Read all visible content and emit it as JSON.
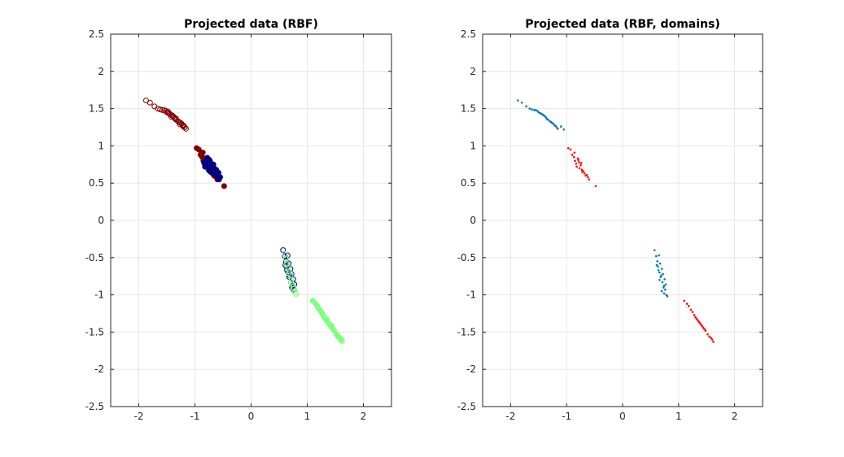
{
  "chart_data": [
    {
      "type": "scatter",
      "title": "Projected data (RBF)",
      "xlabel": "",
      "ylabel": "",
      "xlim": [
        -2.5,
        2.5
      ],
      "ylim": [
        -2.5,
        2.5
      ],
      "xticks": [
        "-2",
        "-1",
        "0",
        "1",
        "2"
      ],
      "xtick_values": [
        -2,
        -1,
        0,
        1,
        2
      ],
      "yticks": [
        "2.5",
        "2",
        "1.5",
        "1",
        "0.5",
        "0",
        "-0.5",
        "-1",
        "-1.5",
        "-2",
        "-2.5"
      ],
      "ytick_values": [
        2.5,
        2,
        1.5,
        1,
        0.5,
        0,
        -0.5,
        -1,
        -1.5,
        -2,
        -2.5
      ],
      "grid": true,
      "series": [
        {
          "color": "#800000",
          "marker": "open-circle",
          "x": [
            -1.87,
            -1.8,
            -1.72,
            -1.66,
            -1.62,
            -1.58,
            -1.55,
            -1.52,
            -1.5,
            -1.47,
            -1.45,
            -1.43,
            -1.41,
            -1.39,
            -1.37,
            -1.35,
            -1.33,
            -1.3,
            -1.28,
            -1.26,
            -1.24,
            -1.22,
            -1.2,
            -1.18,
            -1.16,
            -1.48,
            -1.42,
            -1.34,
            -1.27,
            -1.21
          ],
          "y": [
            1.61,
            1.58,
            1.53,
            1.5,
            1.49,
            1.48,
            1.48,
            1.47,
            1.45,
            1.44,
            1.43,
            1.42,
            1.41,
            1.4,
            1.38,
            1.36,
            1.35,
            1.33,
            1.32,
            1.31,
            1.3,
            1.28,
            1.27,
            1.25,
            1.23,
            1.46,
            1.39,
            1.37,
            1.29,
            1.26
          ]
        },
        {
          "color": "#800000",
          "marker": "filled-circle",
          "x": [
            -0.97,
            -0.93,
            -0.9,
            -0.87,
            -0.85,
            -0.83,
            -0.82,
            -0.8,
            -0.78,
            -0.77,
            -0.75,
            -0.73,
            -0.72,
            -0.7,
            -0.68,
            -0.66,
            -0.64,
            -0.62,
            -0.6,
            -0.48,
            -0.86,
            -0.79,
            -0.74
          ],
          "y": [
            0.97,
            0.95,
            0.88,
            0.85,
            0.8,
            0.76,
            0.72,
            0.83,
            0.78,
            0.7,
            0.74,
            0.68,
            0.65,
            0.66,
            0.63,
            0.6,
            0.61,
            0.58,
            0.55,
            0.46,
            0.91,
            0.81,
            0.77
          ]
        },
        {
          "color": "#000080",
          "marker": "filled-circle",
          "x": [
            -0.84,
            -0.8,
            -0.78,
            -0.76,
            -0.75,
            -0.73,
            -0.71,
            -0.7,
            -0.68,
            -0.67,
            -0.65,
            -0.64,
            -0.62,
            -0.6,
            -0.58,
            -0.57,
            -0.55,
            -0.74,
            -0.69,
            -0.63,
            -0.59,
            -0.82,
            -0.66
          ],
          "y": [
            0.78,
            0.76,
            0.84,
            0.73,
            0.67,
            0.79,
            0.71,
            0.64,
            0.69,
            0.75,
            0.66,
            0.62,
            0.68,
            0.6,
            0.64,
            0.55,
            0.58,
            0.81,
            0.73,
            0.63,
            0.57,
            0.72,
            0.7
          ]
        },
        {
          "color": "#000080",
          "marker": "open-circle",
          "x": [
            0.57,
            0.6,
            0.62,
            0.63,
            0.65,
            0.66,
            0.67,
            0.68,
            0.7,
            0.71,
            0.72,
            0.74,
            0.75,
            0.76,
            0.77,
            0.64,
            0.69,
            0.73,
            0.61
          ],
          "y": [
            -0.4,
            -0.48,
            -0.55,
            -0.62,
            -0.47,
            -0.7,
            -0.58,
            -0.76,
            -0.65,
            -0.83,
            -0.72,
            -0.88,
            -0.79,
            -0.93,
            -0.86,
            -0.67,
            -0.74,
            -0.9,
            -0.6
          ]
        },
        {
          "color": "#80ff80",
          "marker": "open-circle",
          "x": [
            0.6,
            0.62,
            0.64,
            0.66,
            0.68,
            0.7,
            0.72,
            0.74,
            0.76,
            0.78,
            0.8,
            0.63,
            0.67,
            0.71,
            0.75,
            1.58,
            1.6,
            1.62,
            1.61
          ],
          "y": [
            -0.45,
            -0.52,
            -0.58,
            -0.63,
            -0.68,
            -0.74,
            -0.8,
            -0.86,
            -0.92,
            -0.97,
            -0.99,
            -0.6,
            -0.71,
            -0.83,
            -0.89,
            -1.58,
            -1.61,
            -1.62,
            -1.6
          ]
        },
        {
          "color": "#80ff80",
          "marker": "filled-circle",
          "x": [
            1.1,
            1.15,
            1.18,
            1.22,
            1.25,
            1.28,
            1.3,
            1.32,
            1.34,
            1.36,
            1.38,
            1.4,
            1.42,
            1.44,
            1.46,
            1.48,
            1.52,
            1.55,
            1.58,
            1.6,
            1.2,
            1.27,
            1.35,
            1.43
          ],
          "y": [
            -1.08,
            -1.12,
            -1.15,
            -1.2,
            -1.23,
            -1.27,
            -1.3,
            -1.32,
            -1.34,
            -1.36,
            -1.38,
            -1.4,
            -1.42,
            -1.44,
            -1.46,
            -1.48,
            -1.53,
            -1.56,
            -1.58,
            -1.6,
            -1.18,
            -1.25,
            -1.33,
            -1.41
          ]
        }
      ]
    },
    {
      "type": "scatter",
      "title": "Projected data (RBF, domains)",
      "xlabel": "",
      "ylabel": "",
      "xlim": [
        -2.5,
        2.5
      ],
      "ylim": [
        -2.5,
        2.5
      ],
      "xticks": [
        "-2",
        "-1",
        "0",
        "1",
        "2"
      ],
      "xtick_values": [
        -2,
        -1,
        0,
        1,
        2
      ],
      "yticks": [
        "2.5",
        "2",
        "1.5",
        "1",
        "0.5",
        "0",
        "-0.5",
        "-1",
        "-1.5",
        "-2",
        "-2.5"
      ],
      "ytick_values": [
        2.5,
        2,
        1.5,
        1,
        0.5,
        0,
        -0.5,
        -1,
        -1.5,
        -2,
        -2.5
      ],
      "grid": true,
      "series": [
        {
          "color": "#0072bd",
          "marker": "dot",
          "x": [
            -1.87,
            -1.8,
            -1.72,
            -1.66,
            -1.62,
            -1.58,
            -1.55,
            -1.52,
            -1.5,
            -1.47,
            -1.45,
            -1.43,
            -1.41,
            -1.39,
            -1.37,
            -1.35,
            -1.33,
            -1.3,
            -1.28,
            -1.26,
            -1.24,
            -1.22,
            -1.2,
            -1.18,
            -1.16,
            -1.1,
            -1.05,
            0.57,
            0.6,
            0.62,
            0.63,
            0.65,
            0.66,
            0.67,
            0.68,
            0.7,
            0.71,
            0.72,
            0.74,
            0.75,
            0.76,
            0.77,
            0.64,
            0.69,
            0.73,
            0.61,
            0.66,
            0.7,
            0.74,
            0.78,
            0.8
          ],
          "y": [
            1.61,
            1.58,
            1.53,
            1.5,
            1.49,
            1.48,
            1.48,
            1.47,
            1.45,
            1.44,
            1.43,
            1.42,
            1.41,
            1.4,
            1.38,
            1.36,
            1.35,
            1.33,
            1.32,
            1.31,
            1.3,
            1.28,
            1.27,
            1.25,
            1.23,
            1.26,
            1.22,
            -0.4,
            -0.48,
            -0.55,
            -0.62,
            -0.47,
            -0.7,
            -0.58,
            -0.76,
            -0.65,
            -0.83,
            -0.72,
            -0.88,
            -0.79,
            -0.93,
            -0.86,
            -0.67,
            -0.74,
            -0.9,
            -0.6,
            -0.8,
            -0.95,
            -0.98,
            -1.0,
            -1.02
          ]
        },
        {
          "color": "#ff0000",
          "marker": "dot",
          "x": [
            -0.97,
            -0.93,
            -0.9,
            -0.87,
            -0.85,
            -0.83,
            -0.82,
            -0.8,
            -0.78,
            -0.77,
            -0.75,
            -0.73,
            -0.72,
            -0.7,
            -0.68,
            -0.66,
            -0.64,
            -0.62,
            -0.6,
            -0.48,
            -0.86,
            -0.79,
            -0.74,
            1.1,
            1.15,
            1.18,
            1.22,
            1.25,
            1.28,
            1.3,
            1.32,
            1.34,
            1.36,
            1.38,
            1.4,
            1.42,
            1.44,
            1.46,
            1.48,
            1.52,
            1.55,
            1.58,
            1.6,
            1.62
          ],
          "y": [
            0.97,
            0.95,
            0.88,
            0.85,
            0.8,
            0.76,
            0.72,
            0.83,
            0.78,
            0.7,
            0.74,
            0.68,
            0.65,
            0.66,
            0.63,
            0.6,
            0.61,
            0.58,
            0.55,
            0.46,
            0.91,
            0.81,
            0.77,
            -1.08,
            -1.12,
            -1.15,
            -1.2,
            -1.23,
            -1.27,
            -1.3,
            -1.32,
            -1.34,
            -1.36,
            -1.38,
            -1.4,
            -1.42,
            -1.44,
            -1.46,
            -1.48,
            -1.53,
            -1.56,
            -1.58,
            -1.6,
            -1.63
          ]
        }
      ]
    }
  ]
}
